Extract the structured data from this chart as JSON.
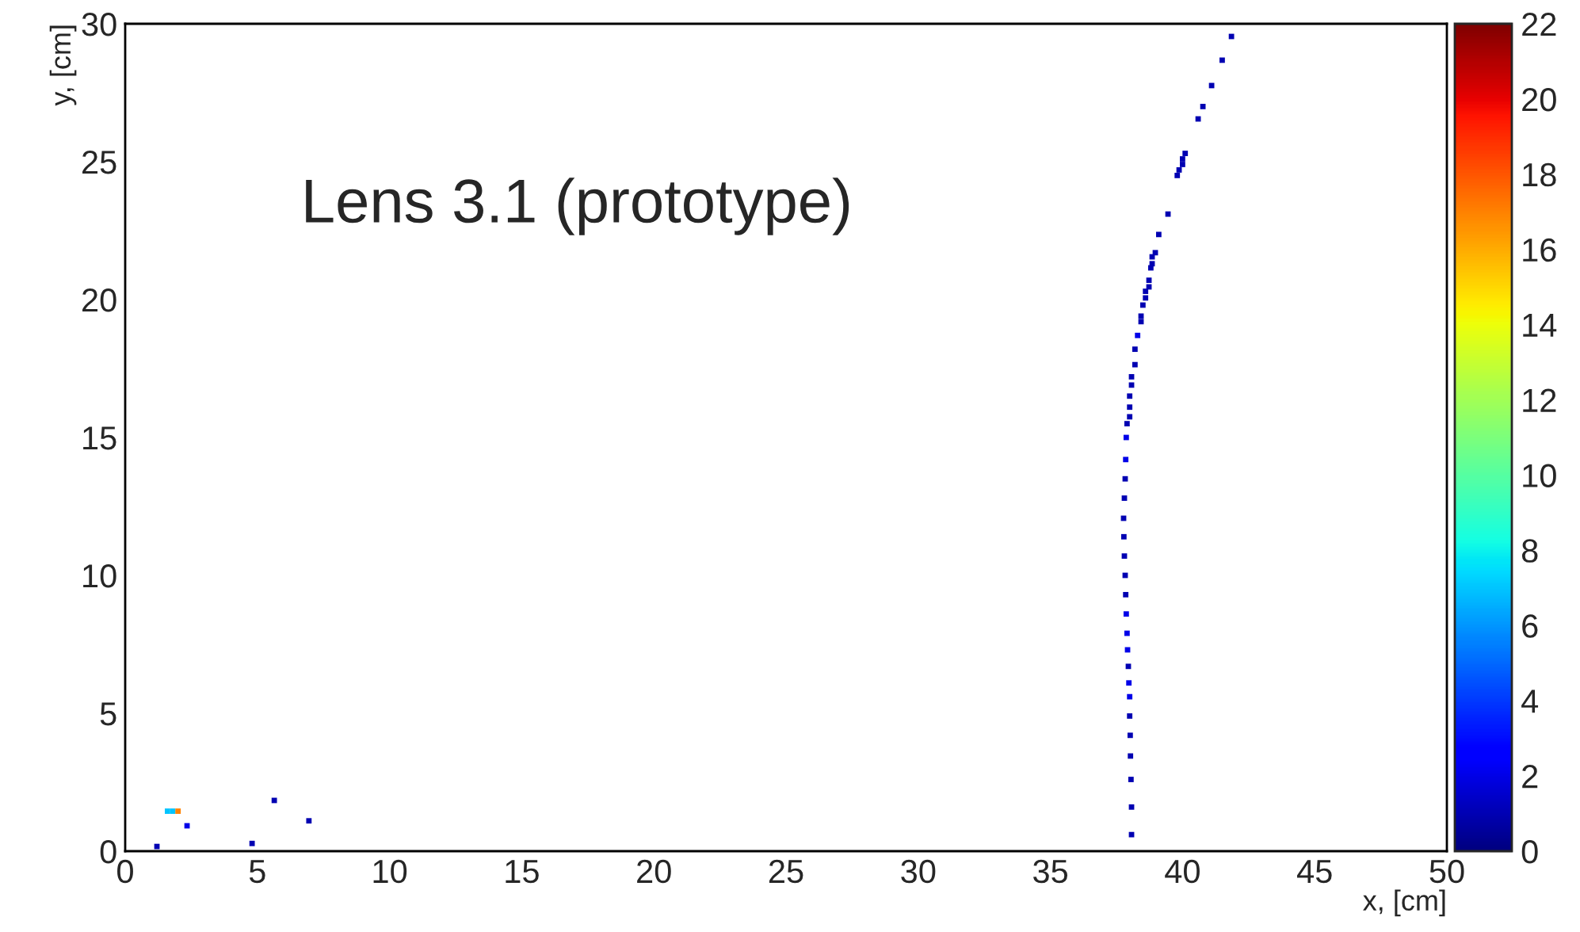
{
  "chart_data": {
    "type": "scatter",
    "xlabel": "x, [cm]",
    "ylabel": "y, [cm]",
    "annotations": [
      "Lens 3.1 (prototype)"
    ],
    "x": [
      41.85,
      41.5,
      41.1,
      40.77,
      40.59,
      40.1,
      40.0,
      40.0,
      39.87,
      39.8,
      39.45,
      39.1,
      38.97,
      38.85,
      38.85,
      38.8,
      38.73,
      38.73,
      38.6,
      38.6,
      38.5,
      38.43,
      38.43,
      38.3,
      38.2,
      38.2,
      38.07,
      38.07,
      38.0,
      38.0,
      38.0,
      37.9,
      37.87,
      37.85,
      37.83,
      37.8,
      37.77,
      37.78,
      37.8,
      37.83,
      37.85,
      37.87,
      37.9,
      37.92,
      37.95,
      37.97,
      38.0,
      38.0,
      38.02,
      38.03,
      38.05,
      38.07,
      38.07,
      1.6,
      1.8,
      2.0,
      2.34,
      1.2,
      4.8,
      5.64,
      6.95
    ],
    "values": [
      29.54,
      28.68,
      27.76,
      27.0,
      26.55,
      25.3,
      25.1,
      24.9,
      24.7,
      24.5,
      23.1,
      22.36,
      21.7,
      21.55,
      21.3,
      21.15,
      20.7,
      20.46,
      20.3,
      20.06,
      19.8,
      19.4,
      19.2,
      18.7,
      18.2,
      17.64,
      17.2,
      16.9,
      16.5,
      16.1,
      15.75,
      15.5,
      15.0,
      14.2,
      13.5,
      12.8,
      12.07,
      11.4,
      10.7,
      10.0,
      9.3,
      8.6,
      7.9,
      7.3,
      6.7,
      6.1,
      5.6,
      4.9,
      4.2,
      3.45,
      2.6,
      1.6,
      0.6,
      1.45,
      1.45,
      1.45,
      0.92,
      0.17,
      0.28,
      1.84,
      1.1
    ],
    "cvalues": [
      1,
      1,
      1,
      1,
      1,
      1,
      1,
      1,
      1,
      1,
      1,
      1,
      1,
      1,
      1,
      1,
      1,
      1,
      1,
      1,
      1,
      1,
      1,
      2,
      1,
      1,
      1,
      1,
      1,
      1,
      1,
      1,
      2,
      2,
      1,
      1,
      1,
      1,
      1,
      1,
      1,
      2,
      2,
      2,
      1,
      2,
      2,
      1,
      1,
      1,
      1,
      1,
      1,
      7,
      7,
      17,
      2,
      1,
      1,
      1,
      1
    ],
    "marker": "square",
    "xlim": [
      0,
      50
    ],
    "xticks": [
      0,
      5,
      10,
      15,
      20,
      25,
      30,
      35,
      40,
      45,
      50
    ],
    "ylim": [
      0,
      30
    ],
    "yticks": [
      0,
      5,
      10,
      15,
      20,
      25,
      30
    ],
    "clim": [
      0,
      22
    ],
    "cticks": [
      0,
      2,
      4,
      6,
      8,
      10,
      12,
      14,
      16,
      18,
      20,
      22
    ],
    "grid": false
  }
}
